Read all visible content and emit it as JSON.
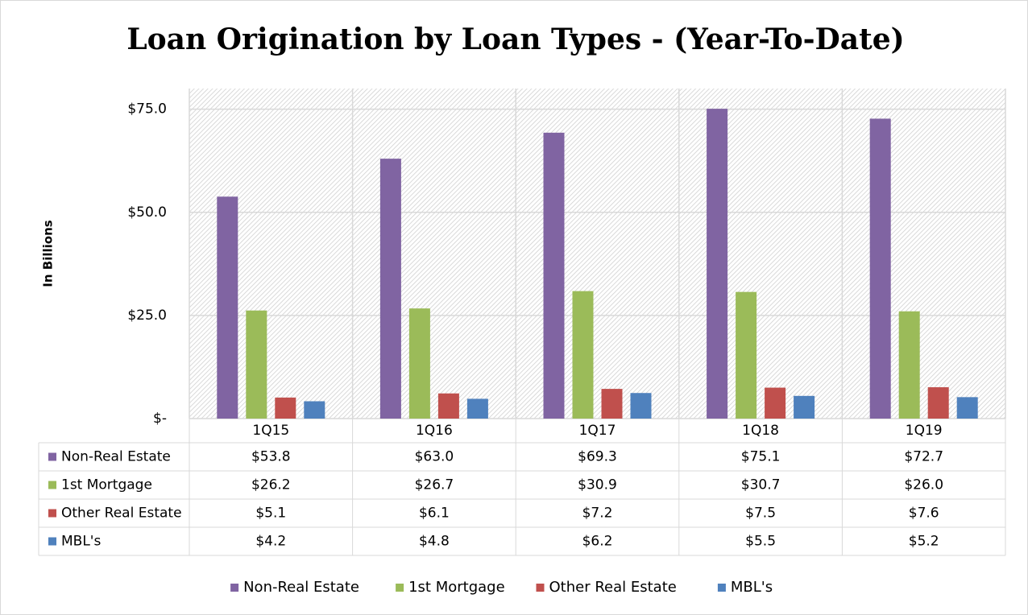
{
  "chart_data": {
    "type": "bar",
    "title": "Loan Origination by Loan Types - (Year-To-Date)",
    "y_label": "In Billions",
    "categories": [
      "1Q15",
      "1Q16",
      "1Q17",
      "1Q18",
      "1Q19"
    ],
    "series": [
      {
        "name": "Non-Real Estate",
        "color": "#8064a2",
        "values": [
          53.8,
          63.0,
          69.3,
          75.1,
          72.7
        ],
        "value_labels": [
          "$53.8",
          "$63.0",
          "$69.3",
          "$75.1",
          "$72.7"
        ]
      },
      {
        "name": "1st Mortgage",
        "color": "#9bbb59",
        "values": [
          26.2,
          26.7,
          30.9,
          30.7,
          26.0
        ],
        "value_labels": [
          "$26.2",
          "$26.7",
          "$30.9",
          "$30.7",
          "$26.0"
        ]
      },
      {
        "name": "Other Real Estate",
        "color": "#c0504d",
        "values": [
          5.1,
          6.1,
          7.2,
          7.5,
          7.6
        ],
        "value_labels": [
          "$5.1",
          "$6.1",
          "$7.2",
          "$7.5",
          "$7.6"
        ]
      },
      {
        "name": "MBL's",
        "color": "#4f81bd",
        "values": [
          4.2,
          4.8,
          6.2,
          5.5,
          5.2
        ],
        "value_labels": [
          "$4.2",
          "$4.8",
          "$6.2",
          "$5.5",
          "$5.2"
        ]
      }
    ],
    "ylim": [
      0,
      80
    ],
    "yticks": [
      {
        "value": 0,
        "label": "$-"
      },
      {
        "value": 25,
        "label": "$25.0"
      },
      {
        "value": 50,
        "label": "$50.0"
      },
      {
        "value": 75,
        "label": "$75.0"
      }
    ],
    "grid": true
  }
}
